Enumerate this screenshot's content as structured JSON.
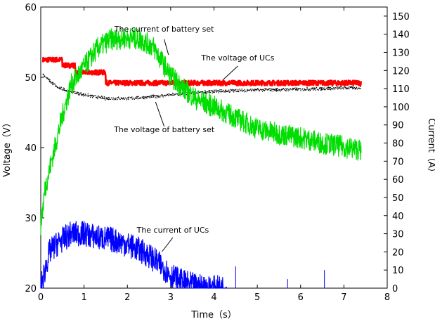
{
  "chart_data": {
    "type": "line",
    "title": "",
    "xlabel": "Time（s）",
    "ylabel": "Voltage（V）",
    "y2label": "Current（A）",
    "xlim": [
      0,
      8
    ],
    "ylim": [
      20,
      60
    ],
    "y2lim": [
      0,
      155
    ],
    "x_ticks": [
      0,
      1,
      2,
      3,
      4,
      5,
      6,
      7,
      8
    ],
    "y_ticks": [
      20,
      30,
      40,
      50,
      60
    ],
    "y2_ticks": [
      0,
      10,
      20,
      30,
      40,
      50,
      60,
      70,
      80,
      90,
      100,
      110,
      120,
      130,
      140,
      150
    ],
    "series": [
      {
        "name": "The voltage of UCs",
        "axis": "left",
        "color": "#ff0000",
        "x": [
          0.05,
          0.5,
          0.5,
          0.8,
          0.8,
          1.5,
          1.5,
          7.4
        ],
        "y": [
          52.5,
          52.5,
          51.7,
          51.7,
          50.7,
          50.7,
          49.2,
          49.2
        ]
      },
      {
        "name": "The voltage of battery set",
        "axis": "left",
        "color": "#000000",
        "x": [
          0.05,
          0.2,
          0.4,
          0.7,
          1.0,
          1.5,
          2.0,
          2.5,
          3.0,
          4.0,
          5.0,
          6.0,
          7.0,
          7.4
        ],
        "y": [
          50.5,
          49.5,
          48.5,
          48.0,
          47.5,
          47.0,
          47.0,
          47.2,
          47.5,
          48.0,
          48.2,
          48.3,
          48.5,
          48.5
        ]
      },
      {
        "name": "The current of battery set",
        "axis": "right",
        "color": "#00dd00",
        "x": [
          0.0,
          0.1,
          0.3,
          0.5,
          0.7,
          1.0,
          1.3,
          1.6,
          2.0,
          2.3,
          2.6,
          2.8,
          3.0,
          3.3,
          3.6,
          4.0,
          4.5,
          5.0,
          5.5,
          6.0,
          6.5,
          7.0,
          7.4
        ],
        "y": [
          35,
          55,
          75,
          95,
          112,
          122,
          132,
          137,
          138,
          137,
          133,
          125,
          117,
          110,
          104,
          100,
          94,
          88,
          85,
          83,
          80,
          78,
          76
        ]
      },
      {
        "name": "The current of UCs",
        "axis": "right",
        "color": "#0000ff",
        "x": [
          0.0,
          0.1,
          0.2,
          0.4,
          0.7,
          1.0,
          1.3,
          1.6,
          1.9,
          2.2,
          2.5,
          2.8,
          3.0,
          3.3,
          3.6,
          4.0,
          4.3
        ],
        "y": [
          0,
          10,
          20,
          25,
          30,
          30,
          28,
          27,
          25,
          22,
          18,
          12,
          7,
          3,
          1,
          0,
          0
        ]
      }
    ],
    "annotations": [
      {
        "text": "The current of battery set",
        "x": 2.85,
        "y_axis": "left",
        "y": 56.5
      },
      {
        "text": "The voltage of UCs",
        "x": 4.55,
        "y_axis": "left",
        "y": 52.4
      },
      {
        "text": "The voltage of battery set",
        "x": 2.85,
        "y_axis": "left",
        "y": 42.2
      },
      {
        "text": "The current of UCs",
        "x": 3.05,
        "y_axis": "left",
        "y": 27.9
      }
    ]
  }
}
